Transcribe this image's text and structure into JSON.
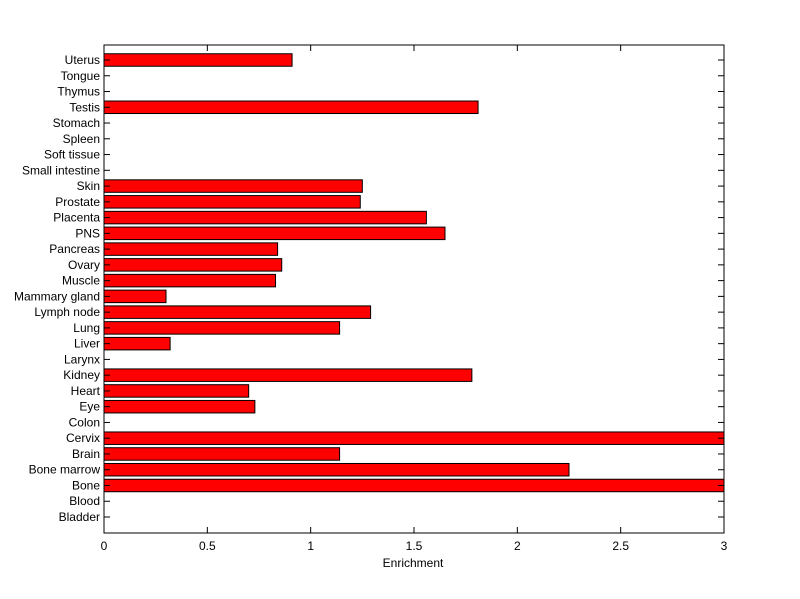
{
  "chart_data": {
    "type": "bar",
    "orientation": "horizontal",
    "xlabel": "Enrichment",
    "ylabel": "",
    "title": "",
    "xlim": [
      0,
      3
    ],
    "xticks": [
      0,
      0.5,
      1,
      1.5,
      2,
      2.5,
      3
    ],
    "xtick_labels": [
      "0",
      "0.5",
      "1",
      "1.5",
      "2",
      "2.5",
      "3"
    ],
    "grid": false,
    "bar_color": "#ff0000",
    "categories": [
      "Bladder",
      "Blood",
      "Bone",
      "Bone marrow",
      "Brain",
      "Cervix",
      "Colon",
      "Eye",
      "Heart",
      "Kidney",
      "Larynx",
      "Liver",
      "Lung",
      "Lymph node",
      "Mammary gland",
      "Muscle",
      "Ovary",
      "Pancreas",
      "PNS",
      "Placenta",
      "Prostate",
      "Skin",
      "Small intestine",
      "Soft tissue",
      "Spleen",
      "Stomach",
      "Testis",
      "Thymus",
      "Tongue",
      "Uterus"
    ],
    "values": [
      0,
      0,
      3.0,
      2.25,
      1.14,
      3.0,
      0,
      0.73,
      0.7,
      1.78,
      0,
      0.32,
      1.14,
      1.29,
      0.3,
      0.83,
      0.86,
      0.84,
      1.65,
      1.56,
      1.24,
      1.25,
      0,
      0,
      0,
      0,
      1.81,
      0,
      0,
      0.91
    ]
  }
}
